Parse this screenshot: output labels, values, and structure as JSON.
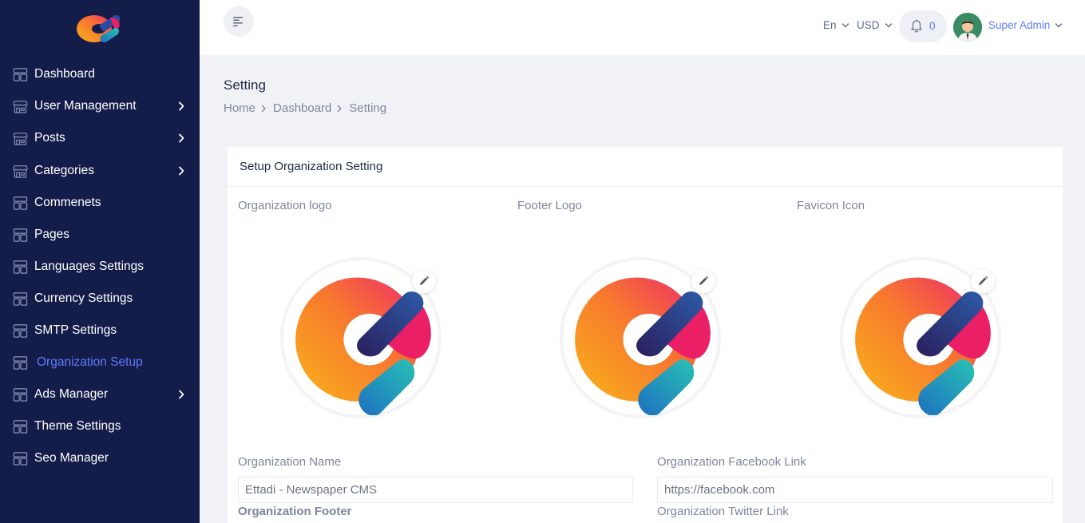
{
  "app": {
    "accent_color": "#5e7cff",
    "sidebar_color": "#141c4a"
  },
  "sidebar": {
    "items": [
      {
        "label": "Dashboard",
        "icon": "layout-icon",
        "has_children": false
      },
      {
        "label": "User Management",
        "icon": "store-icon",
        "has_children": true
      },
      {
        "label": "Posts",
        "icon": "store-icon",
        "has_children": true
      },
      {
        "label": "Categories",
        "icon": "store-icon",
        "has_children": true
      },
      {
        "label": "Commenets",
        "icon": "layout-icon",
        "has_children": false
      },
      {
        "label": "Pages",
        "icon": "layout-icon",
        "has_children": false
      },
      {
        "label": "Languages Settings",
        "icon": "layout-icon",
        "has_children": false
      },
      {
        "label": "Currency Settings",
        "icon": "layout-icon",
        "has_children": false
      },
      {
        "label": "SMTP Settings",
        "icon": "layout-icon",
        "has_children": false
      },
      {
        "label": "Organization Setup",
        "icon": "layout-icon",
        "has_children": false,
        "active": true
      },
      {
        "label": "Ads Manager",
        "icon": "layout-icon",
        "has_children": true
      },
      {
        "label": "Theme Settings",
        "icon": "layout-icon",
        "has_children": false
      },
      {
        "label": "Seo Manager",
        "icon": "layout-icon",
        "has_children": false
      }
    ]
  },
  "topbar": {
    "language": "En",
    "currency": "USD",
    "notification_count": "0",
    "user_name": "Super Admin"
  },
  "page": {
    "title": "Setting",
    "breadcrumb": [
      "Home",
      "Dashboard",
      "Setting"
    ]
  },
  "card": {
    "title": "Setup Organization Setting",
    "logos": [
      {
        "label": "Organization logo"
      },
      {
        "label": "Footer Logo"
      },
      {
        "label": "Favicon Icon"
      }
    ],
    "fields": {
      "org_name_label": "Organization Name",
      "org_name_value": "Ettadi - Newspaper CMS",
      "facebook_label": "Organization Facebook Link",
      "facebook_value": "https://facebook.com",
      "footer_label": "Organization Footer",
      "twitter_label": "Organization Twitter Link"
    }
  }
}
